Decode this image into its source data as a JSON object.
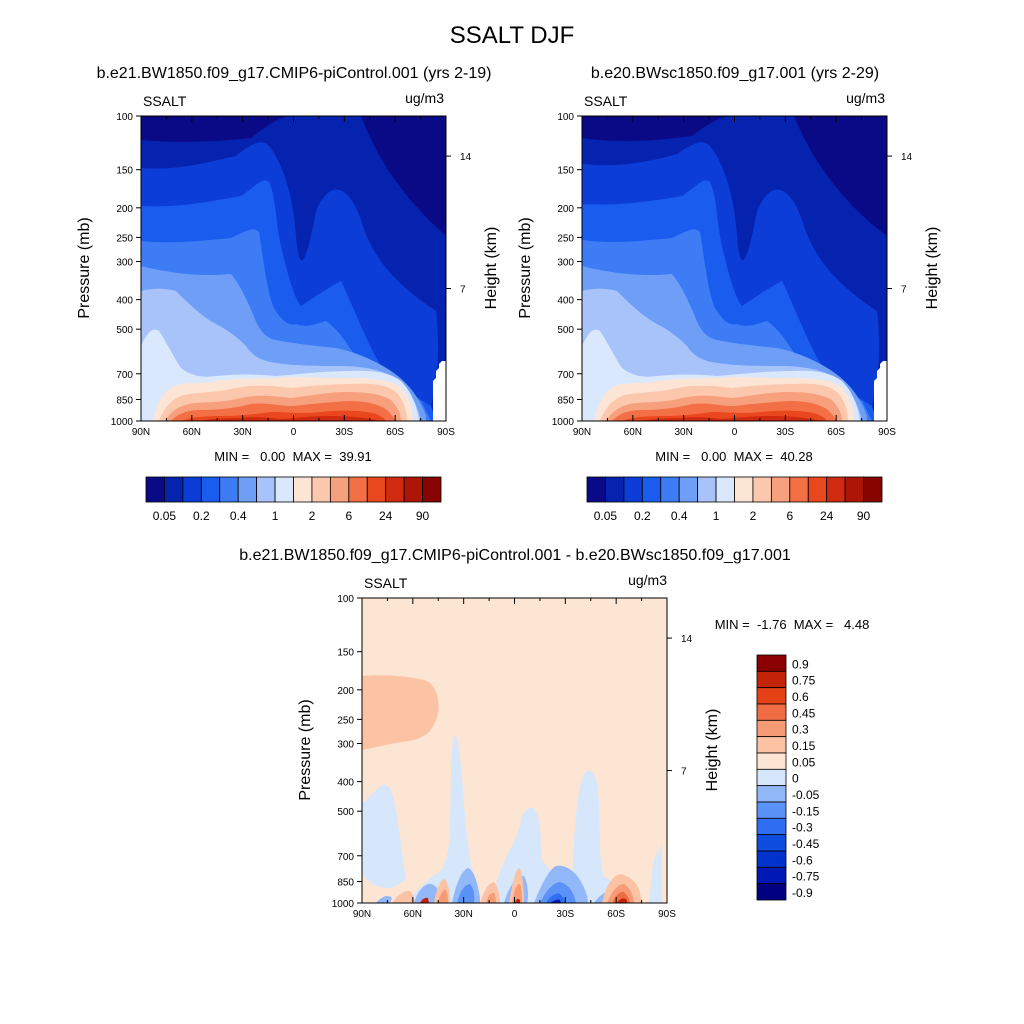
{
  "chart_data": {
    "type": "heatmap",
    "title": "SSALT DJF",
    "panels": [
      {
        "id": "case1",
        "title": "b.e21.BW1850.f09_g17.CMIP6-piControl.001 (yrs 2-19)",
        "variable": "SSALT",
        "units": "ug/m3",
        "ylabel": "Pressure (mb)",
        "y2label": "Height (km)",
        "x_ticks": [
          "90N",
          "60N",
          "30N",
          "0",
          "30S",
          "60S",
          "90S"
        ],
        "y_ticks": [
          "100",
          "150",
          "200",
          "250",
          "300",
          "400",
          "500",
          "700",
          "850",
          "1000"
        ],
        "y2_ticks": [
          "14",
          "7"
        ],
        "stats": "MIN =   0.00  MAX =  39.91",
        "min": 0.0,
        "max": 39.91,
        "colorbar_labels": [
          "0.05",
          "0.2",
          "0.4",
          "1",
          "2",
          "6",
          "24",
          "90"
        ]
      },
      {
        "id": "case2",
        "title": "b.e20.BWsc1850.f09_g17.001 (yrs 2-29)",
        "variable": "SSALT",
        "units": "ug/m3",
        "ylabel": "Pressure (mb)",
        "y2label": "Height (km)",
        "x_ticks": [
          "90N",
          "60N",
          "30N",
          "0",
          "30S",
          "60S",
          "90S"
        ],
        "y_ticks": [
          "100",
          "150",
          "200",
          "250",
          "300",
          "400",
          "500",
          "700",
          "850",
          "1000"
        ],
        "y2_ticks": [
          "14",
          "7"
        ],
        "stats": "MIN =   0.00  MAX =  40.28",
        "min": 0.0,
        "max": 40.28,
        "colorbar_labels": [
          "0.05",
          "0.2",
          "0.4",
          "1",
          "2",
          "6",
          "24",
          "90"
        ]
      },
      {
        "id": "diff",
        "title": "b.e21.BW1850.f09_g17.CMIP6-piControl.001 - b.e20.BWsc1850.f09_g17.001",
        "variable": "SSALT",
        "units": "ug/m3",
        "ylabel": "Pressure (mb)",
        "y2label": "Height (km)",
        "x_ticks": [
          "90N",
          "60N",
          "30N",
          "0",
          "30S",
          "60S",
          "90S"
        ],
        "y_ticks": [
          "100",
          "150",
          "200",
          "250",
          "300",
          "400",
          "500",
          "700",
          "850",
          "1000"
        ],
        "y2_ticks": [
          "14",
          "7"
        ],
        "stats": "MIN =  -1.76  MAX =   4.48",
        "min": -1.76,
        "max": 4.48,
        "colorbar_labels": [
          "0.9",
          "0.75",
          "0.6",
          "0.45",
          "0.3",
          "0.15",
          "0.05",
          "0",
          "-0.05",
          "-0.15",
          "-0.3",
          "-0.45",
          "-0.6",
          "-0.75",
          "-0.9"
        ]
      }
    ],
    "colors": {
      "seq": [
        "#0a0a87",
        "#0623b0",
        "#0c3dd6",
        "#1a5ced",
        "#3d7cf5",
        "#6f9ef7",
        "#a7c3fa",
        "#d9e8fc",
        "#fde5d6",
        "#fbc7ad",
        "#f7a07e",
        "#f37047",
        "#e9471d",
        "#d02a10",
        "#ad1607",
        "#870300"
      ],
      "div": [
        "#000080",
        "#0019b4",
        "#0033cc",
        "#0f4de0",
        "#2f6ef0",
        "#5b92f7",
        "#93b8fa",
        "#d6e6fb",
        "#fde5d3",
        "#fbc3a4",
        "#f59b75",
        "#f06c42",
        "#e44216",
        "#c32407",
        "#8b0000"
      ]
    }
  }
}
